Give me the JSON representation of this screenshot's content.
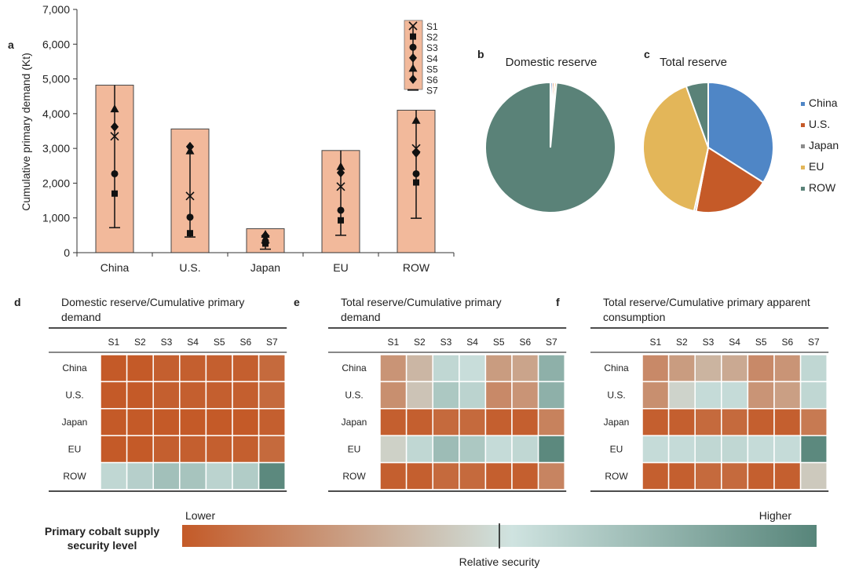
{
  "panel_a": {
    "label": "a",
    "chart_data": {
      "type": "bar",
      "ylabel": "Cumulative primary demand (Kt)",
      "ylim": [
        0,
        7000
      ],
      "yticks": [
        0,
        1000,
        2000,
        3000,
        4000,
        5000,
        6000,
        7000
      ],
      "ytick_labels": [
        "0",
        "1,000",
        "2,000",
        "3,000",
        "4,000",
        "5,000",
        "6,000",
        "7,000"
      ],
      "categories": [
        "China",
        "U.S.",
        "Japan",
        "EU",
        "ROW"
      ],
      "bar_values": [
        4820,
        3560,
        690,
        2940,
        4100
      ],
      "range_low": [
        720,
        450,
        100,
        500,
        990
      ],
      "range_high": [
        4820,
        3150,
        560,
        2940,
        4100
      ],
      "scenarios": [
        {
          "name": "S1",
          "marker": "x",
          "values": [
            3350,
            1630,
            380,
            1900,
            3000
          ]
        },
        {
          "name": "S2",
          "marker": "square",
          "values": [
            1700,
            560,
            260,
            930,
            2020
          ]
        },
        {
          "name": "S3",
          "marker": "circle",
          "values": [
            2270,
            1020,
            330,
            1220,
            2270
          ]
        },
        {
          "name": "S4",
          "marker": "diamond",
          "values": [
            3620,
            3050,
            490,
            2300,
            2870
          ]
        },
        {
          "name": "S5",
          "marker": "triangle",
          "values": [
            4130,
            2920,
            520,
            2470,
            3800
          ]
        },
        {
          "name": "S6",
          "marker": "diamond",
          "values": [
            3620,
            3050,
            490,
            2300,
            2870
          ]
        },
        {
          "name": "S7",
          "marker": "bar",
          "values": [
            720,
            450,
            100,
            500,
            990
          ]
        }
      ]
    }
  },
  "panel_b": {
    "label": "b",
    "title": "Domestic reserve",
    "chart_data": {
      "type": "pie",
      "labels": [
        "China",
        "U.S.",
        "Japan",
        "EU",
        "ROW"
      ],
      "values": [
        0.5,
        0.5,
        0.0,
        0.5,
        98.5
      ]
    }
  },
  "panel_c": {
    "label": "c",
    "title": "Total reserve",
    "chart_data": {
      "type": "pie",
      "labels": [
        "China",
        "U.S.",
        "Japan",
        "EU",
        "ROW"
      ],
      "values": [
        34,
        19,
        0.5,
        41,
        5.5
      ]
    }
  },
  "legend": {
    "items": [
      {
        "label": "China",
        "color": "#4f86c6"
      },
      {
        "label": "U.S.",
        "color": "#c55a28"
      },
      {
        "label": "Japan",
        "color": "#8c8c8c"
      },
      {
        "label": "EU",
        "color": "#e3b659"
      },
      {
        "label": "ROW",
        "color": "#5a8278"
      }
    ]
  },
  "heatmaps": {
    "columns": [
      "S1",
      "S2",
      "S3",
      "S4",
      "S5",
      "S6",
      "S7"
    ],
    "rows": [
      "China",
      "U.S.",
      "Japan",
      "EU",
      "ROW"
    ],
    "panels": [
      {
        "label": "d",
        "title_line1": "Domestic reserve/Cumulative primary",
        "title_line2": "demand",
        "chart_data": {
          "type": "heatmap",
          "values": [
            [
              0.0,
              0.0,
              0.02,
              0.02,
              0.02,
              0.02,
              0.06
            ],
            [
              0.0,
              0.0,
              0.02,
              0.02,
              0.02,
              0.02,
              0.06
            ],
            [
              0.0,
              0.0,
              0.0,
              0.0,
              0.0,
              0.0,
              0.02
            ],
            [
              0.0,
              0.0,
              0.02,
              0.02,
              0.02,
              0.02,
              0.06
            ],
            [
              0.58,
              0.62,
              0.7,
              0.68,
              0.6,
              0.64,
              0.98
            ]
          ]
        }
      },
      {
        "label": "e",
        "title_line1": "Total reserve/Cumulative primary",
        "title_line2": "demand",
        "chart_data": {
          "type": "heatmap",
          "values": [
            [
              0.22,
              0.35,
              0.58,
              0.55,
              0.25,
              0.28,
              0.78
            ],
            [
              0.2,
              0.4,
              0.66,
              0.6,
              0.18,
              0.22,
              0.78
            ],
            [
              0.02,
              0.02,
              0.06,
              0.06,
              0.02,
              0.02,
              0.15
            ],
            [
              0.45,
              0.58,
              0.72,
              0.66,
              0.56,
              0.58,
              0.98
            ],
            [
              0.02,
              0.02,
              0.06,
              0.06,
              0.02,
              0.02,
              0.16
            ]
          ]
        }
      },
      {
        "label": "f",
        "title_line1": "Total reserve/Cumulative primary apparent",
        "title_line2": "consumption",
        "chart_data": {
          "type": "heatmap",
          "values": [
            [
              0.18,
              0.25,
              0.34,
              0.3,
              0.18,
              0.22,
              0.58
            ],
            [
              0.2,
              0.46,
              0.56,
              0.56,
              0.22,
              0.26,
              0.58
            ],
            [
              0.02,
              0.02,
              0.06,
              0.06,
              0.02,
              0.02,
              0.12
            ],
            [
              0.56,
              0.56,
              0.58,
              0.58,
              0.56,
              0.56,
              0.98
            ],
            [
              0.02,
              0.02,
              0.06,
              0.06,
              0.02,
              0.02,
              0.42
            ]
          ]
        }
      }
    ]
  },
  "scale": {
    "title_line1": "Primary cobalt supply",
    "title_line2": "security level",
    "lower": "Lower",
    "higher": "Higher",
    "caption": "Relative security",
    "colors": {
      "low": "#c45a28",
      "mid": "#cfe3e0",
      "high": "#57857a"
    }
  }
}
